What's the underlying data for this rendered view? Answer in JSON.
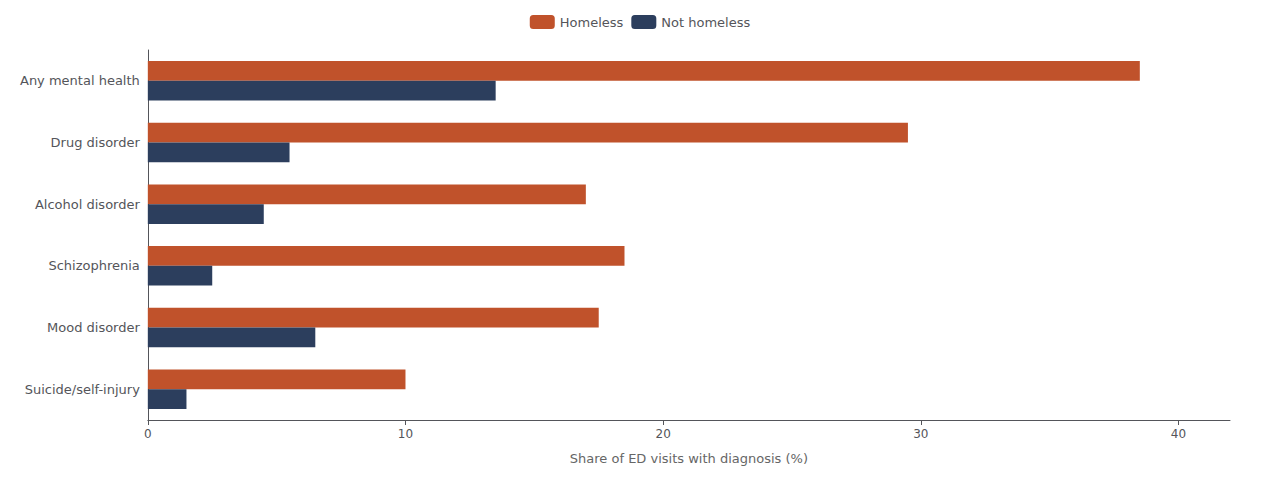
{
  "chart_data": {
    "type": "bar",
    "orientation": "horizontal",
    "categories": [
      "Any mental health",
      "Drug disorder",
      "Alcohol disorder",
      "Schizophrenia",
      "Mood disorder",
      "Suicide/self-injury"
    ],
    "series": [
      {
        "name": "Homeless",
        "color": "#C0522B",
        "values": [
          38.5,
          29.5,
          17.0,
          18.5,
          17.5,
          10.0
        ]
      },
      {
        "name": "Not homeless",
        "color": "#2C3E5D",
        "values": [
          13.5,
          5.5,
          4.5,
          2.5,
          6.5,
          1.5
        ]
      }
    ],
    "xlabel": "Share of ED visits with diagnosis (%)",
    "xlim": [
      0,
      42
    ],
    "xticks": [
      0,
      10,
      20,
      30,
      40
    ],
    "grid": false,
    "legend": "top"
  }
}
